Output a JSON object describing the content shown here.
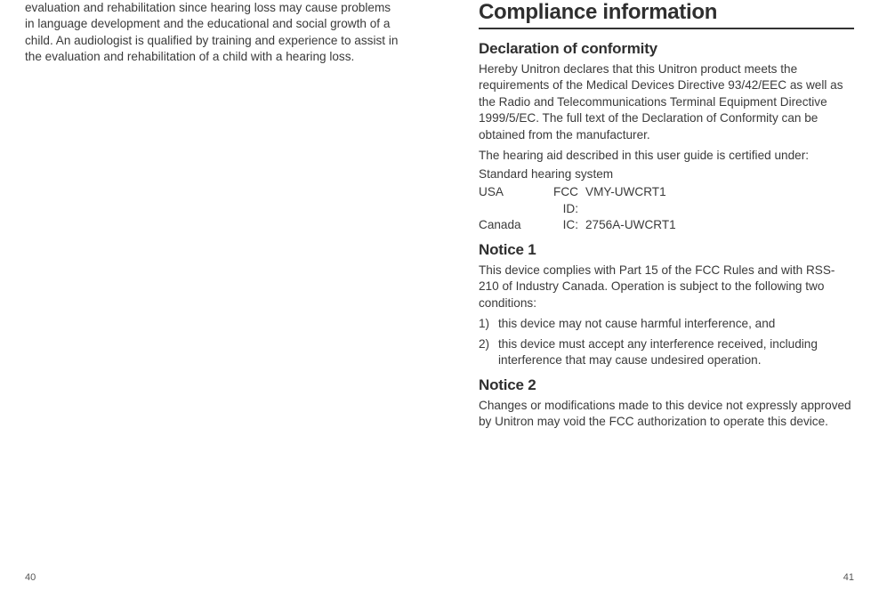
{
  "left": {
    "body": "evaluation and rehabilitation since hearing loss may cause problems in language development and the educational and social growth of a child. An audiologist is qualified by training and experience to assist in the evaluation and rehabilitation of a child with a hearing loss.",
    "pgnum": "40"
  },
  "right": {
    "h1": "Compliance information",
    "decl": {
      "heading": "Declaration of conformity",
      "p1": "Hereby Unitron declares that this Unitron product meets the requirements of the Medical Devices Directive 93/42/EEC as well as the Radio and Telecommunications Terminal Equipment Directive 1999/5/EC. The full text of the Declaration of Conformity can be obtained from the manufacturer.",
      "p2": "The hearing aid described in this user guide is certified under:",
      "p3": "Standard hearing system",
      "rows": [
        {
          "country": "USA",
          "label": "FCC ID:",
          "value": "VMY-UWCRT1"
        },
        {
          "country": "Canada",
          "label": "IC:",
          "value": "2756A-UWCRT1"
        }
      ]
    },
    "n1": {
      "heading": "Notice 1",
      "p1": "This device complies with Part 15 of the FCC Rules and with RSS-210 of Industry Canada. Operation is subject to the following two conditions:",
      "items": [
        {
          "marker": "1)",
          "text": "this device may not cause harmful interference, and"
        },
        {
          "marker": "2)",
          "text": "this device must accept any interference received, including interference that may cause undesired operation."
        }
      ]
    },
    "n2": {
      "heading": "Notice 2",
      "p1": "Changes or modifications made to this device not expressly approved by Unitron may void the FCC authorization to operate this device."
    },
    "pgnum": "41"
  }
}
